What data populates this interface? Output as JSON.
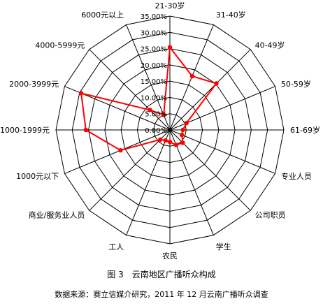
{
  "chart_data": {
    "type": "radar",
    "categories": [
      "21-30岁",
      "31-40岁",
      "40-49岁",
      "50-59岁",
      "61-69岁",
      "专业人员",
      "公司职员",
      "学生",
      "农民",
      "工人",
      "商业/服务业人员",
      "1000元以下",
      "1000-1999元",
      "2000-3999元",
      "4000-5999元",
      "6000元以上"
    ],
    "values": [
      25.4,
      17.9,
      20.2,
      5.5,
      4.0,
      4.0,
      5.6,
      5.0,
      3.7,
      3.5,
      4.2,
      16.4,
      25.8,
      29.5,
      8.7,
      5.0
    ],
    "ylim": [
      0,
      35
    ],
    "ticks": [
      "0.00%",
      "5.00%",
      "10.00%",
      "15.00%",
      "20.00%",
      "25.00%",
      "30.00%",
      "35.00%"
    ],
    "tick_values": [
      0,
      5,
      10,
      15,
      20,
      25,
      30,
      35
    ],
    "grid": true,
    "line_color": "#ff0000",
    "grid_color": "#000000"
  },
  "caption": "图 3　云南地区广播听众构成",
  "source": "数据来源：赛立信媒介研究，2011 年 12 月云南广播听众调查"
}
